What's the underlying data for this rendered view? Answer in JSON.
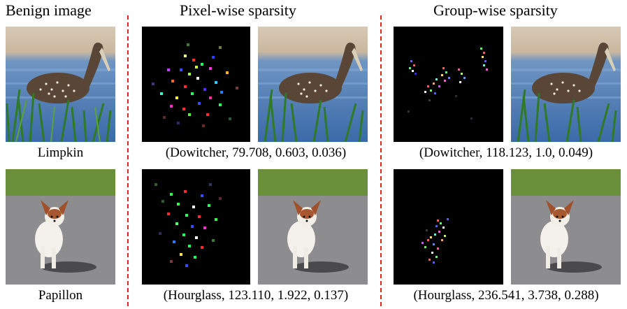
{
  "columns": {
    "benign": "Benign image",
    "pixel": "Pixel-wise sparsity",
    "group": "Group-wise sparsity"
  },
  "rows": [
    {
      "label": "Limpkin",
      "pixel_caption": "(Dowitcher, 79.708, 0.603, 0.036)",
      "group_caption": "(Dowitcher, 118.123, 1.0, 0.049)"
    },
    {
      "label": "Papillon",
      "pixel_caption": "(Hourglass, 123.110, 1.922, 0.137)",
      "group_caption": "(Hourglass, 236.541, 3.738, 0.288)"
    }
  ],
  "colors": {
    "divider": "#e0241c",
    "perturbation_background": "#000000"
  }
}
